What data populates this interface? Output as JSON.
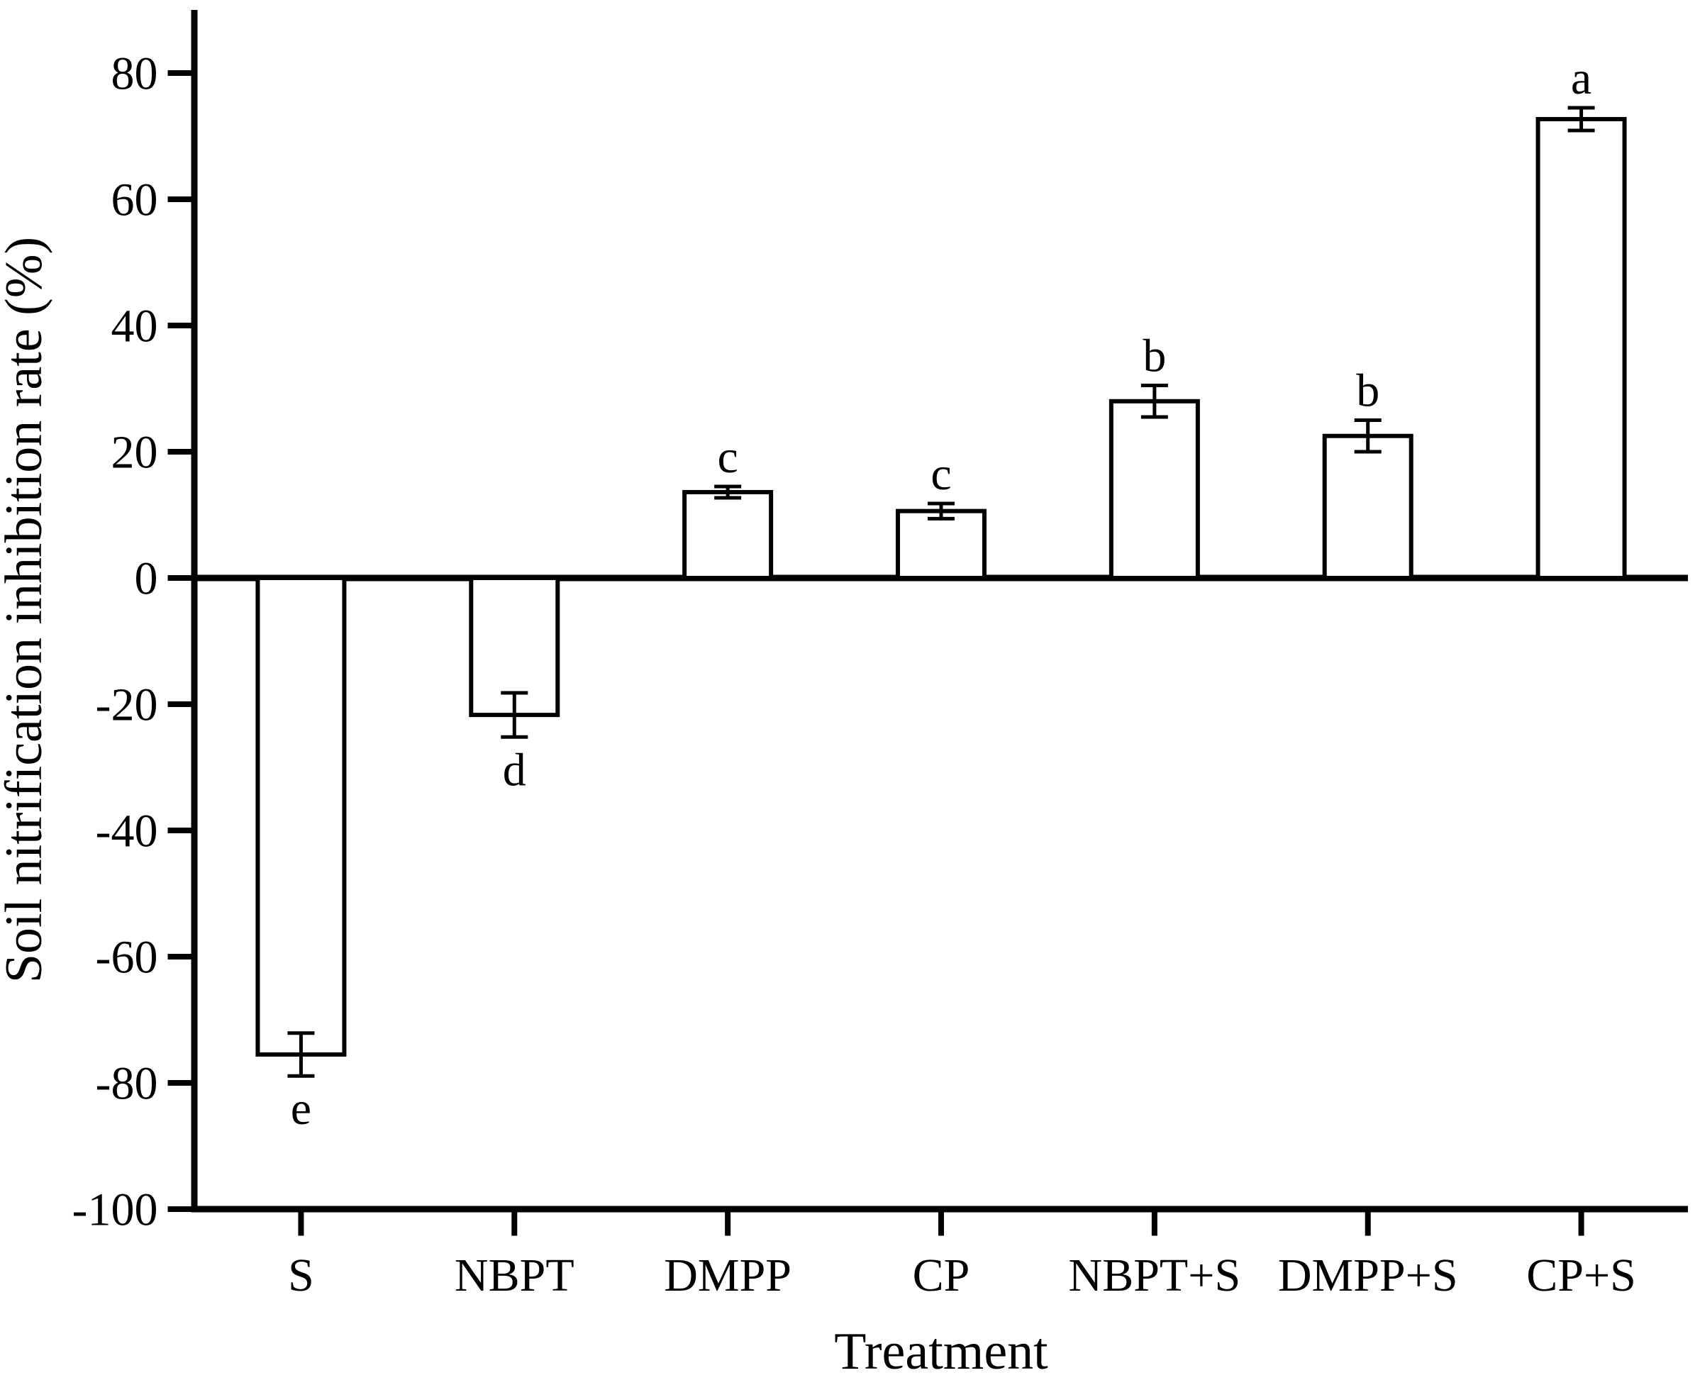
{
  "figure": {
    "background": "#ffffff",
    "ink_color": "#000000"
  },
  "chart_data": {
    "type": "bar",
    "title": "",
    "xlabel": "Treatment",
    "ylabel": "Soil nitrification inhibition rate (%)",
    "categories": [
      "S",
      "NBPT",
      "DMPP",
      "CP",
      "NBPT+S",
      "DMPP+S",
      "CP+S"
    ],
    "values": [
      -75.5,
      -21.7,
      13.6,
      10.6,
      28.0,
      22.5,
      72.7
    ],
    "errors": [
      3.4,
      3.5,
      0.9,
      1.2,
      2.5,
      2.5,
      1.8
    ],
    "sig_letters": [
      "e",
      "d",
      "c",
      "c",
      "b",
      "b",
      "a"
    ],
    "ylim": [
      -100,
      90
    ],
    "yticks": [
      -100,
      -80,
      -60,
      -40,
      -20,
      0,
      20,
      40,
      60,
      80
    ],
    "ytick_labels": [
      "-100",
      "-80",
      "-60",
      "-40",
      "-20",
      "0",
      "20",
      "40",
      "60",
      "80"
    ],
    "grid": false,
    "legend": null,
    "bar_fill": "#ffffff",
    "bar_stroke": "#000000",
    "baseline_value": 0,
    "error_bars": "both-directions-capped"
  }
}
